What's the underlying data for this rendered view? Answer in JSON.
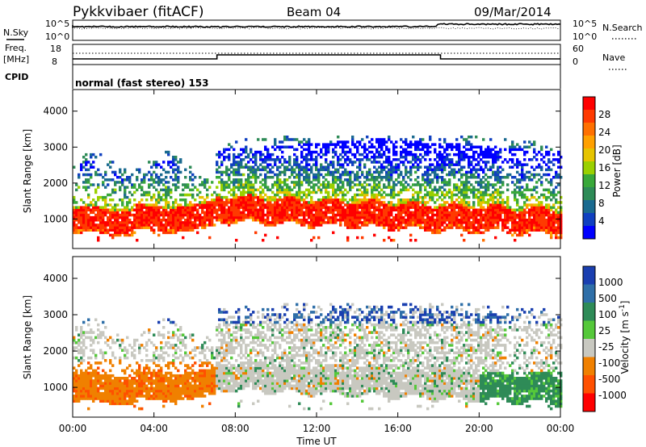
{
  "header": {
    "station": "Pykkvibaer (fitACF)",
    "beam": "Beam 04",
    "date": "09/Mar/2014"
  },
  "strip": {
    "nsky_label": "N.Sky",
    "nsky_ticks": [
      "10^5",
      "10^0"
    ],
    "nsearch_label": "N.Search",
    "nsearch_ticks": [
      "10^5",
      "10^0"
    ],
    "freq_label_1": "Freq.",
    "freq_label_2": "[MHz]",
    "freq_ticks": [
      "18",
      "8"
    ],
    "nave_label": "Nave",
    "nave_ticks": [
      "60",
      "0"
    ],
    "cpid_label": "CPID",
    "cpid_text": "normal (fast stereo) 153"
  },
  "xaxis": {
    "label": "Time UT",
    "ticks": [
      "00:00",
      "04:00",
      "08:00",
      "12:00",
      "16:00",
      "20:00",
      "00:00"
    ]
  },
  "chart_data": [
    {
      "type": "heatmap",
      "panel": "power",
      "ylabel": "Slant Range [km]",
      "ylim": [
        180,
        4600
      ],
      "yticks": [
        1000,
        2000,
        3000,
        4000
      ],
      "xlim": [
        0,
        24
      ],
      "colorbar": {
        "label": "Power [dB]",
        "ticks": [
          "28",
          "24",
          "20",
          "16",
          "12",
          "8",
          "4"
        ],
        "colors": [
          "#ff0000",
          "#ff3a00",
          "#ff7000",
          "#ffa000",
          "#e6c400",
          "#9ad000",
          "#39a83a",
          "#2e8b57",
          "#1a6a8f",
          "#1040c0",
          "#0000ff"
        ]
      }
    },
    {
      "type": "heatmap",
      "panel": "velocity",
      "ylabel": "Slant Range [km]",
      "ylim": [
        180,
        4600
      ],
      "yticks": [
        1000,
        2000,
        3000,
        4000
      ],
      "xlim": [
        0,
        24
      ],
      "colorbar": {
        "label": "Velocity [m s^-1]",
        "ticks": [
          "1000",
          "500",
          "100",
          "25",
          "-25",
          "-100",
          "-500",
          "-1000"
        ],
        "colors": [
          "#1a3fb0",
          "#2f6fa8",
          "#2e8b57",
          "#55c83a",
          "#c8c8c0",
          "#f08000",
          "#ff5000",
          "#ff0000"
        ]
      }
    }
  ]
}
